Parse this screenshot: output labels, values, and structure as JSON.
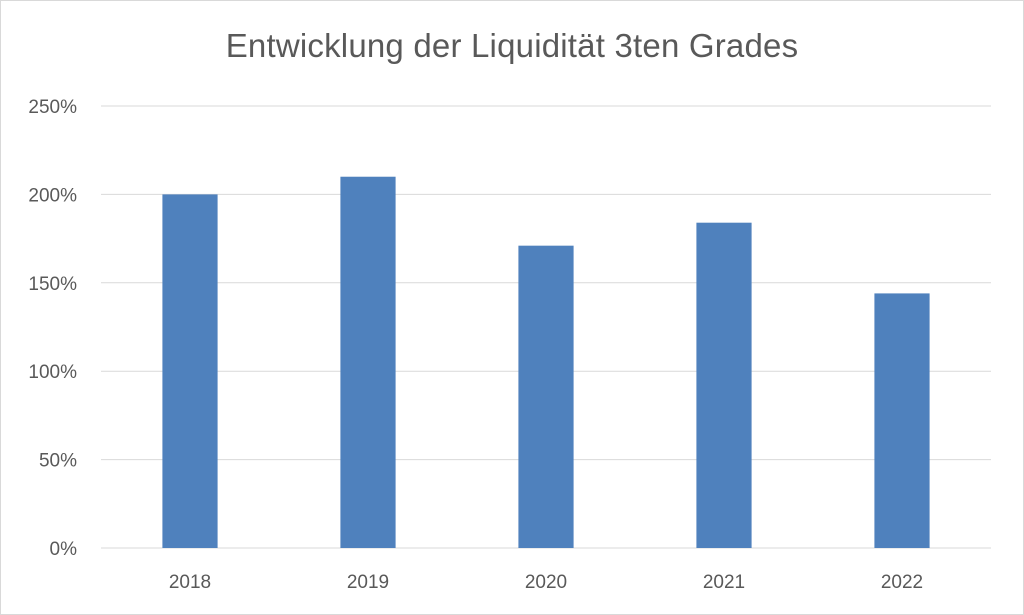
{
  "chart_data": {
    "type": "bar",
    "title": "Entwicklung der Liquidität 3ten Grades",
    "categories": [
      "2018",
      "2019",
      "2020",
      "2021",
      "2022"
    ],
    "values": [
      2.0,
      2.1,
      1.71,
      1.84,
      1.44
    ],
    "yticks": [
      "0%",
      "50%",
      "100%",
      "150%",
      "200%",
      "250%"
    ],
    "ylim": [
      0,
      2.5
    ],
    "xlabel": "",
    "ylabel": "",
    "grid": true,
    "legend": "none",
    "bar_color": "#4f81bd",
    "grid_color": "#d9d9d9",
    "text_color": "#595959"
  }
}
